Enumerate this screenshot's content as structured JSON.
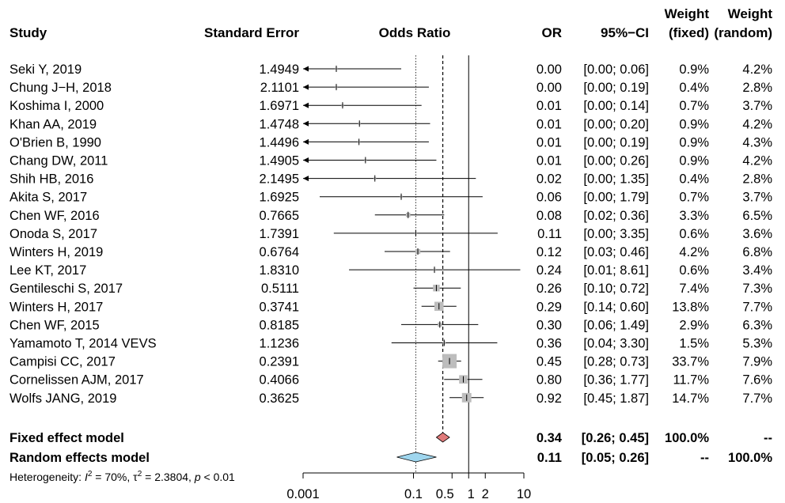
{
  "headers": {
    "study": "Study",
    "se": "Standard Error",
    "or_axis": "Odds Ratio",
    "or": "OR",
    "ci": "95%−CI",
    "weight_fixed_line1": "Weight",
    "weight_fixed_line2": "(fixed)",
    "weight_random_line1": "Weight",
    "weight_random_line2": "(random)"
  },
  "chart_data": {
    "type": "forest",
    "scale": "log",
    "xlim": [
      0.001,
      10
    ],
    "ticks": [
      {
        "value": 0.001,
        "label": "0.001"
      },
      {
        "value": 0.1,
        "label": "0.1"
      },
      {
        "value": 0.5,
        "label": "0.5"
      },
      {
        "value": 1,
        "label": "1"
      },
      {
        "value": 2,
        "label": "2"
      },
      {
        "value": 10,
        "label": "10"
      }
    ],
    "studies": [
      {
        "study": "Seki Y, 2019",
        "se": "1.4949",
        "or_label": "0.00",
        "ci_label": "[0.00; 0.06]",
        "wf": "0.9%",
        "wr": "4.2%",
        "or": 0.004,
        "lo": 0.001,
        "hi": 0.06,
        "w": 0.9
      },
      {
        "study": "Chung J−H, 2018",
        "se": "2.1101",
        "or_label": "0.00",
        "ci_label": "[0.00; 0.19]",
        "wf": "0.4%",
        "wr": "2.8%",
        "or": 0.004,
        "lo": 0.001,
        "hi": 0.19,
        "w": 0.4
      },
      {
        "study": "Koshima I, 2000",
        "se": "1.6971",
        "or_label": "0.01",
        "ci_label": "[0.00; 0.14]",
        "wf": "0.7%",
        "wr": "3.7%",
        "or": 0.0052,
        "lo": 0.001,
        "hi": 0.14,
        "w": 0.7
      },
      {
        "study": "Khan AA, 2019",
        "se": "1.4748",
        "or_label": "0.01",
        "ci_label": "[0.00; 0.20]",
        "wf": "0.9%",
        "wr": "4.2%",
        "or": 0.0105,
        "lo": 0.001,
        "hi": 0.2,
        "w": 0.9
      },
      {
        "study": "O'Brien B, 1990",
        "se": "1.4496",
        "or_label": "0.01",
        "ci_label": "[0.00; 0.19]",
        "wf": "0.9%",
        "wr": "4.3%",
        "or": 0.0103,
        "lo": 0.001,
        "hi": 0.19,
        "w": 0.9
      },
      {
        "study": "Chang DW, 2011",
        "se": "1.4905",
        "or_label": "0.01",
        "ci_label": "[0.00; 0.26]",
        "wf": "0.9%",
        "wr": "4.2%",
        "or": 0.0135,
        "lo": 0.001,
        "hi": 0.26,
        "w": 0.9
      },
      {
        "study": "Shih HB, 2016",
        "se": "2.1495",
        "or_label": "0.02",
        "ci_label": "[0.00; 1.35]",
        "wf": "0.4%",
        "wr": "2.8%",
        "or": 0.02,
        "lo": 0.001,
        "hi": 1.35,
        "w": 0.4
      },
      {
        "study": "Akita S, 2017",
        "se": "1.6925",
        "or_label": "0.06",
        "ci_label": "[0.00; 1.79]",
        "wf": "0.7%",
        "wr": "3.7%",
        "or": 0.06,
        "lo": 0.002,
        "hi": 1.79,
        "w": 0.7
      },
      {
        "study": "Chen WF, 2016",
        "se": "0.7665",
        "or_label": "0.08",
        "ci_label": "[0.02; 0.36]",
        "wf": "3.3%",
        "wr": "6.5%",
        "or": 0.08,
        "lo": 0.02,
        "hi": 0.36,
        "w": 3.3
      },
      {
        "study": "Onoda S, 2017",
        "se": "1.7391",
        "or_label": "0.11",
        "ci_label": "[0.00; 3.35]",
        "wf": "0.6%",
        "wr": "3.6%",
        "or": 0.11,
        "lo": 0.0036,
        "hi": 3.35,
        "w": 0.6
      },
      {
        "study": "Winters H, 2019",
        "se": "0.6764",
        "or_label": "0.12",
        "ci_label": "[0.03; 0.46]",
        "wf": "4.2%",
        "wr": "6.8%",
        "or": 0.12,
        "lo": 0.03,
        "hi": 0.46,
        "w": 4.2
      },
      {
        "study": "Lee KT, 2017",
        "se": "1.8310",
        "or_label": "0.24",
        "ci_label": "[0.01; 8.61]",
        "wf": "0.6%",
        "wr": "3.4%",
        "or": 0.24,
        "lo": 0.0068,
        "hi": 8.61,
        "w": 0.6
      },
      {
        "study": "Gentileschi S, 2017",
        "se": "0.5111",
        "or_label": "0.26",
        "ci_label": "[0.10; 0.72]",
        "wf": "7.4%",
        "wr": "7.3%",
        "or": 0.26,
        "lo": 0.1,
        "hi": 0.72,
        "w": 7.4
      },
      {
        "study": "Winters H, 2017",
        "se": "0.3741",
        "or_label": "0.29",
        "ci_label": "[0.14; 0.60]",
        "wf": "13.8%",
        "wr": "7.7%",
        "or": 0.29,
        "lo": 0.14,
        "hi": 0.6,
        "w": 13.8
      },
      {
        "study": "Chen WF, 2015",
        "se": "0.8185",
        "or_label": "0.30",
        "ci_label": "[0.06; 1.49]",
        "wf": "2.9%",
        "wr": "6.3%",
        "or": 0.3,
        "lo": 0.06,
        "hi": 1.49,
        "w": 2.9
      },
      {
        "study": "Yamamoto T, 2014 VEVS",
        "se": "1.1236",
        "or_label": "0.36",
        "ci_label": "[0.04; 3.30]",
        "wf": "1.5%",
        "wr": "5.3%",
        "or": 0.36,
        "lo": 0.04,
        "hi": 3.3,
        "w": 1.5
      },
      {
        "study": "Campisi CC, 2017",
        "se": "0.2391",
        "or_label": "0.45",
        "ci_label": "[0.28; 0.73]",
        "wf": "33.7%",
        "wr": "7.9%",
        "or": 0.45,
        "lo": 0.28,
        "hi": 0.73,
        "w": 33.7
      },
      {
        "study": "Cornelissen AJM, 2017",
        "se": "0.4066",
        "or_label": "0.80",
        "ci_label": "[0.36; 1.77]",
        "wf": "11.7%",
        "wr": "7.6%",
        "or": 0.8,
        "lo": 0.36,
        "hi": 1.77,
        "w": 11.7
      },
      {
        "study": "Wolfs JANG, 2019",
        "se": "0.3625",
        "or_label": "0.92",
        "ci_label": "[0.45; 1.87]",
        "wf": "14.7%",
        "wr": "7.7%",
        "or": 0.92,
        "lo": 0.45,
        "hi": 1.87,
        "w": 14.7
      }
    ],
    "pooled": [
      {
        "label": "Fixed effect model",
        "or_label": "0.34",
        "ci_label": "[0.26; 0.45]",
        "wf": "100.0%",
        "wr": "--",
        "or": 0.34,
        "lo": 0.26,
        "hi": 0.45,
        "fill": "#e07a7a"
      },
      {
        "label": "Random effects model",
        "or_label": "0.11",
        "ci_label": "[0.05; 0.26]",
        "wf": "--",
        "wr": "100.0%",
        "or": 0.11,
        "lo": 0.05,
        "hi": 0.26,
        "fill": "#9fd6ee"
      }
    ],
    "heterogeneity": {
      "prefix": "Heterogeneity: ",
      "i2_symbol": "I",
      "i2_sup": "2",
      "i2_value": " = 70%, ",
      "tau_symbol": "τ",
      "tau_sup": "2",
      "tau_value": " = 2.3804, ",
      "p_symbol": "p",
      "p_value": " < 0.01"
    },
    "colors": {
      "square": "#bdbdbd",
      "line": "#000000"
    }
  }
}
